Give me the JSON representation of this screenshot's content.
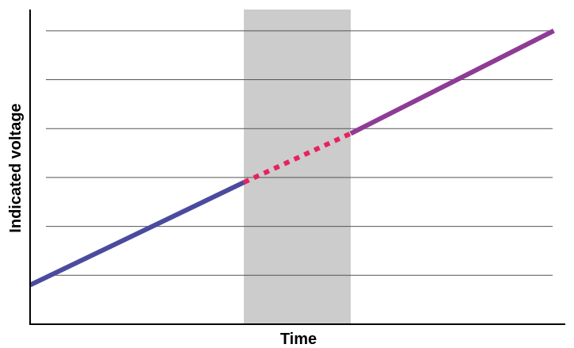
{
  "chart_data": {
    "type": "line",
    "xlabel": "Time",
    "ylabel": "Indicated voltage",
    "xlim": [
      0,
      10
    ],
    "ylim": [
      0,
      6.5
    ],
    "grid": {
      "horizontal": true,
      "vertical": false,
      "yticks": [
        1,
        2,
        3,
        4,
        5,
        6
      ]
    },
    "highlight_region": {
      "x": [
        4,
        6
      ],
      "color": "#cccccc"
    },
    "series": [
      {
        "x": [
          0,
          4
        ],
        "y": [
          0.8,
          2.9
        ],
        "color": "#4b4b9e",
        "style": "solid"
      },
      {
        "x": [
          4,
          6
        ],
        "y": [
          2.9,
          3.9
        ],
        "color": "#e8215f",
        "style": "dotted"
      },
      {
        "x": [
          6,
          9.8
        ],
        "y": [
          3.9,
          6.0
        ],
        "color": "#8e3b96",
        "style": "solid"
      }
    ]
  }
}
